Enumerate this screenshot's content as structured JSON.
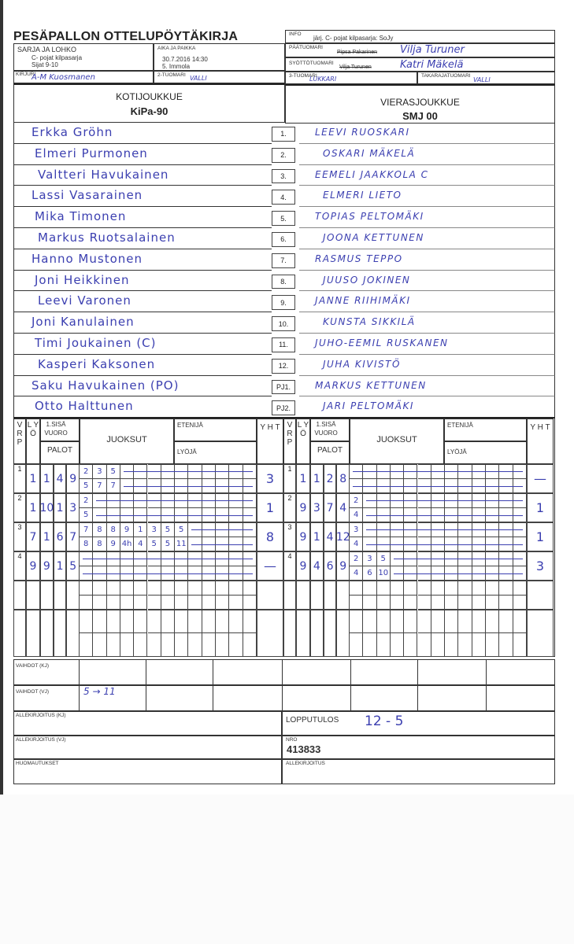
{
  "title": "PESÄPALLON OTTELUPÖYTÄKIRJA",
  "header": {
    "info_label": "INFO",
    "info_value": "järj. C- pojat kilpasarja: SoJy",
    "sarja_label": "SARJA JA LOHKO",
    "sarja_line1": "C- pojat kilpasarja",
    "sarja_line2": "Sijat 9-10",
    "aika_label": "AIKA JA PAIKKA",
    "aika_line1": "30.7.2016 14:30",
    "aika_line2": "5. Immola",
    "paatuomari_label": "PÄÄTUOMARI",
    "paatuomari_printed": "Pipsa Pakarinen",
    "paatuomari_written": "Vilja Turuner",
    "syotto_label": "SYÖTTÖTUOMARI",
    "syotto_printed": "Vilja Turunen",
    "syotto_written": "Katri Mäkelä",
    "kirjuri_label": "KIRJURI",
    "kirjuri_value": "A-M Kuosmanen",
    "tuomari2_label": "2-TUOMARI",
    "tuomari2_value": "VALLI",
    "tuomari3_label": "3-TUOMARI",
    "tuomari3_value": "LUKKARI",
    "takaraja_label": "TAKARAJATUOMARI",
    "takaraja_value": "VALLI"
  },
  "home": {
    "label": "KOTIJOUKKUE",
    "name": "KiPa-90"
  },
  "away": {
    "label": "VIERASJOUKKUE",
    "name": "SMJ 00"
  },
  "lineup": [
    {
      "no": "1.",
      "home": "Erkka Gröhn",
      "away": "LEEVI RUOSKARI"
    },
    {
      "no": "2.",
      "home": "Elmeri Purmonen",
      "away": "OSKARI MÄKELÄ"
    },
    {
      "no": "3.",
      "home": "Valtteri Havukainen",
      "away": "EEMELI JAAKKOLA C"
    },
    {
      "no": "4.",
      "home": "Lassi Vasarainen",
      "away": "ELMERI LIETO"
    },
    {
      "no": "5.",
      "home": "Mika Timonen",
      "away": "TOPIAS PELTOMÄKI"
    },
    {
      "no": "6.",
      "home": "Markus Ruotsalainen",
      "away": "JOONA KETTUNEN"
    },
    {
      "no": "7.",
      "home": "Hanno Mustonen",
      "away": "RASMUS TEPPO"
    },
    {
      "no": "8.",
      "home": "Joni Heikkinen",
      "away": "JUUSO JOKINEN"
    },
    {
      "no": "9.",
      "home": "Leevi Varonen",
      "away": "JANNE RIIHIMÄKI"
    },
    {
      "no": "10.",
      "home": "Joni Kanulainen",
      "away": "KUNSTA SIKKILÄ"
    },
    {
      "no": "11.",
      "home": "Timi Joukainen (C)",
      "away": "JUHO-EEMIL RUSKANEN"
    },
    {
      "no": "12.",
      "home": "Kasperi Kaksonen",
      "away": "JUHA KIVISTÖ"
    },
    {
      "no": "PJ1.",
      "home": "Saku Havukainen (PO)",
      "away": "MARKUS KETTUNEN"
    },
    {
      "no": "PJ2.",
      "home": "Otto Halttunen",
      "away": "JARI PELTOMÄKI"
    }
  ],
  "score_headers": {
    "v": "V R P",
    "l": "L Y Ö",
    "sisa": "1.SISÄ VUORO",
    "palot": "PALOT",
    "juoksut": "JUOKSUT",
    "etenija": "ETENIJÄ",
    "lyoja": "LYÖJÄ",
    "yht": "Y H T"
  },
  "innings_home": [
    {
      "vrp": "1",
      "lyo": "1",
      "palot": [
        "1",
        "4",
        "9"
      ],
      "top": [
        "2",
        "3",
        "5"
      ],
      "bottom": [
        "5",
        "7",
        "7"
      ],
      "yht": "3"
    },
    {
      "vrp": "2",
      "lyo": "1",
      "palot": [
        "10",
        "1",
        "3"
      ],
      "top": [
        "2"
      ],
      "bottom": [
        "5"
      ],
      "yht": "1"
    },
    {
      "vrp": "3",
      "lyo": "7",
      "palot": [
        "1",
        "6",
        "7"
      ],
      "top": [
        "7",
        "8",
        "8",
        "9",
        "1",
        "3",
        "5",
        "5"
      ],
      "bottom": [
        "8",
        "8",
        "9",
        "4h",
        "4",
        "5",
        "5",
        "11"
      ],
      "yht": "8"
    },
    {
      "vrp": "4",
      "lyo": "9",
      "palot": [
        "9",
        "1",
        "5"
      ],
      "top": [],
      "bottom": [],
      "yht": "—"
    }
  ],
  "innings_away": [
    {
      "vrp": "1",
      "lyo": "1",
      "palot": [
        "1",
        "2",
        "8"
      ],
      "top": [],
      "bottom": [],
      "yht": "—"
    },
    {
      "vrp": "2",
      "lyo": "9",
      "palot": [
        "3",
        "7",
        "4"
      ],
      "top": [
        "2"
      ],
      "bottom": [
        "4"
      ],
      "yht": "1"
    },
    {
      "vrp": "3",
      "lyo": "9",
      "palot": [
        "1",
        "4",
        "12"
      ],
      "top": [
        "3"
      ],
      "bottom": [
        "4"
      ],
      "yht": "1"
    },
    {
      "vrp": "4",
      "lyo": "9",
      "palot": [
        "4",
        "6",
        "9"
      ],
      "top": [
        "2",
        "3",
        "5"
      ],
      "bottom": [
        "4",
        "6",
        "10"
      ],
      "yht": "3"
    }
  ],
  "footer": {
    "vaihdot_kj_label": "VAIHDOT (KJ)",
    "vaihdot_vj_label": "VAIHDOT (VJ)",
    "vaihdot_vj_value": "5 → 11",
    "allek_kj_label": "ALLEKIRJOITUS (KJ)",
    "allek_vj_label": "ALLEKIRJOITUS (VJ)",
    "huom_label": "HUOMAUTUKSET",
    "lopputulos_label": "LOPPUTULOS",
    "lopputulos_value": "12 - 5",
    "nro_label": "NRO",
    "nro_value": "413833",
    "allek_label": "ALLEKIRJOITUS"
  },
  "colors": {
    "ink": "#3b3fb0",
    "print": "#222222"
  }
}
